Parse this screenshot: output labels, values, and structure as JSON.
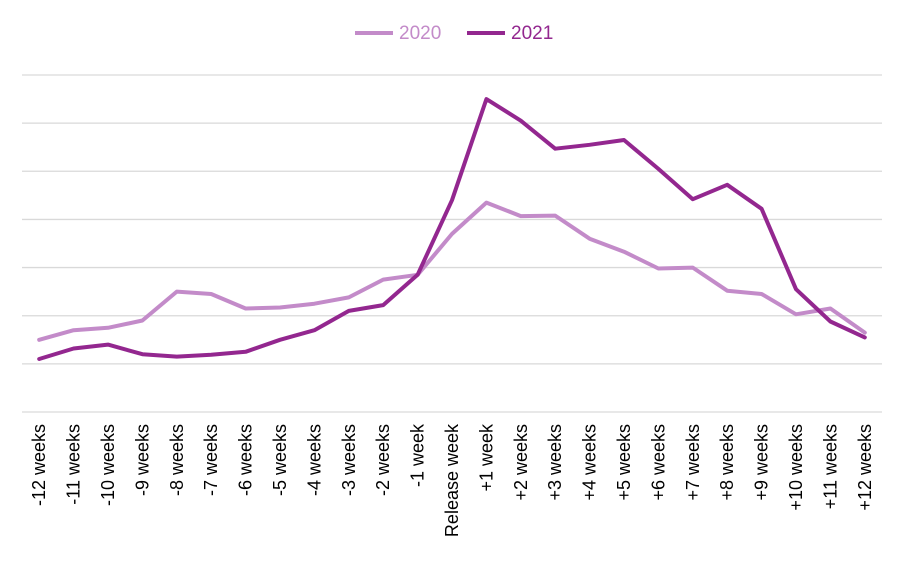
{
  "chart_data": {
    "type": "line",
    "title": "",
    "xlabel": "",
    "ylabel": "",
    "ylim": [
      0,
      7
    ],
    "grid": true,
    "y_tick_labels_shown": false,
    "legend_position": "top-center",
    "categories": [
      "-12 weeks",
      "-11 weeks",
      "-10 weeks",
      "-9 weeks",
      "-8 weeks",
      "-7 weeks",
      "-6 weeks",
      "-5 weeks",
      "-4 weeks",
      "-3 weeks",
      "-2 weeks",
      "-1 week",
      "Release week",
      "+1 week",
      "+2 weeks",
      "+3 weeks",
      "+4 weeks",
      "+5 weeks",
      "+6 weeks",
      "+7 weeks",
      "+8 weeks",
      "+9 weeks",
      "+10 weeks",
      "+11 weeks",
      "+12 weeks"
    ],
    "series": [
      {
        "name": "2020",
        "color": "#c38bc9",
        "values": [
          1.5,
          1.7,
          1.75,
          1.9,
          2.5,
          2.45,
          2.15,
          2.17,
          2.25,
          2.38,
          2.75,
          2.85,
          3.7,
          4.35,
          4.07,
          4.08,
          3.6,
          3.33,
          2.98,
          3.0,
          2.52,
          2.45,
          2.03,
          2.15,
          1.65
        ]
      },
      {
        "name": "2021",
        "color": "#93278f",
        "values": [
          1.1,
          1.32,
          1.4,
          1.2,
          1.15,
          1.19,
          1.25,
          1.5,
          1.7,
          2.1,
          2.22,
          2.85,
          4.4,
          6.5,
          6.05,
          5.47,
          5.55,
          5.65,
          5.05,
          4.42,
          4.72,
          4.22,
          2.55,
          1.88,
          1.55
        ]
      }
    ]
  }
}
